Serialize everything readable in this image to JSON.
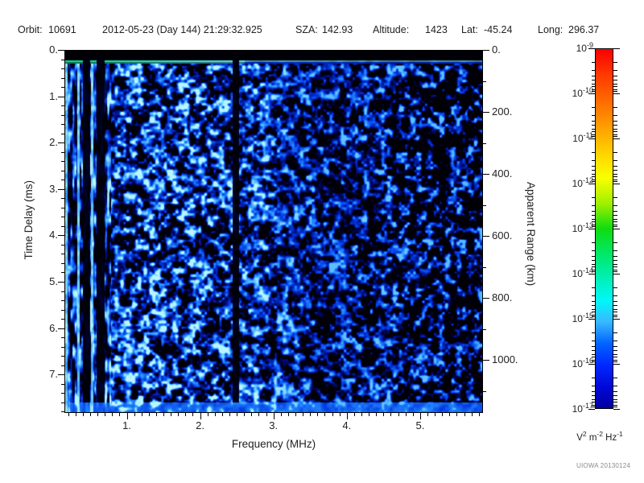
{
  "header": {
    "orbit_label": "Orbit:",
    "orbit_value": "10691",
    "datetime": "2012-05-23 (Day 144) 21:29:32.925",
    "sza_label": "SZA:",
    "sza_value": "142.93",
    "altitude_label": "Altitude:",
    "altitude_value": "1423",
    "lat_label": "Lat:",
    "lat_value": "-45.24",
    "long_label": "Long:",
    "long_value": "296.37"
  },
  "chart_data": {
    "type": "heatmap",
    "subtype": "radar-sounder-ionogram-spectrogram",
    "title": "",
    "xlabel": "Frequency (MHz)",
    "ylabel_left": "Time Delay (ms)",
    "ylabel_right": "Apparent Range (km)",
    "x_ticks": [
      "1.",
      "2.",
      "3.",
      "4.",
      "5."
    ],
    "x_tick_values": [
      1,
      2,
      3,
      4,
      5
    ],
    "x_minor_step_mhz": 0.1,
    "x_range_mhz": [
      0.15,
      5.86
    ],
    "y_ticks": [
      "0.",
      "1.",
      "2.",
      "3.",
      "4.",
      "5.",
      "6.",
      "7."
    ],
    "y_tick_values": [
      0,
      1,
      2,
      3,
      4,
      5,
      6,
      7
    ],
    "y_minor_step_ms": 0.2,
    "y_range_ms": [
      0,
      7.83
    ],
    "y2_ticks": [
      "0.",
      "200.",
      "400.",
      "600.",
      "800.",
      "1000."
    ],
    "y2_tick_values": [
      0,
      200,
      400,
      600,
      800,
      1000
    ],
    "y2_minor_step_km": 100,
    "y2_range_km": [
      0,
      1171
    ],
    "grid": false,
    "legend": "colorbar-right",
    "description": "Diffuse blue speckle noise field on black; intensity near 1e-15 to 1e-17 V2 m-2 Hz-1; brighter mottling at low frequencies, sparser dark-patched noise above ~4 MHz; no ionospheric or surface echo trace visible.",
    "features": {
      "top_blank_band_ms": [
        0,
        0.22
      ],
      "transmitter_line_ms": [
        0.22,
        0.3
      ],
      "low_freq_streaks_mhz": [
        0.15,
        0.78
      ],
      "bright_interference_lines_mhz": [
        0.17,
        0.34,
        0.52
      ],
      "dark_absorption_bands_mhz": [
        [
          0.4,
          0.5
        ],
        [
          0.585,
          0.695
        ],
        [
          2.44,
          2.53
        ]
      ],
      "noise_fadeout_start_mhz": 3.3,
      "bottom_bright_band_ms": [
        7.6,
        7.83
      ]
    },
    "colorbar": {
      "scale": "log",
      "tick_base": "10",
      "tick_exponents": [
        "-9",
        "-10",
        "-11",
        "-12",
        "-13",
        "-14",
        "-15",
        "-16",
        "-17"
      ],
      "unit_segments": [
        {
          "text": "V"
        },
        {
          "text": "2",
          "sup": true
        },
        {
          "text": " m"
        },
        {
          "text": "-2",
          "sup": true
        },
        {
          "text": " Hz"
        },
        {
          "text": "-1",
          "sup": true
        }
      ],
      "colors": [
        {
          "at": 0.0,
          "c": "#f80000"
        },
        {
          "at": 0.07,
          "c": "#ff3800"
        },
        {
          "at": 0.15,
          "c": "#ff6e00"
        },
        {
          "at": 0.23,
          "c": "#ffa800"
        },
        {
          "at": 0.31,
          "c": "#ffe000"
        },
        {
          "at": 0.36,
          "c": "#f8ff00"
        },
        {
          "at": 0.43,
          "c": "#a0f000"
        },
        {
          "at": 0.5,
          "c": "#10dc10"
        },
        {
          "at": 0.57,
          "c": "#00e868"
        },
        {
          "at": 0.64,
          "c": "#00f0b8"
        },
        {
          "at": 0.7,
          "c": "#00f8f8"
        },
        {
          "at": 0.76,
          "c": "#38b8ff"
        },
        {
          "at": 0.82,
          "c": "#0064ff"
        },
        {
          "at": 0.88,
          "c": "#0028ff"
        },
        {
          "at": 0.94,
          "c": "#0008d8"
        },
        {
          "at": 1.0,
          "c": "#0000a0"
        }
      ]
    }
  },
  "footer": {
    "credit": "UIOWA 20130124"
  }
}
